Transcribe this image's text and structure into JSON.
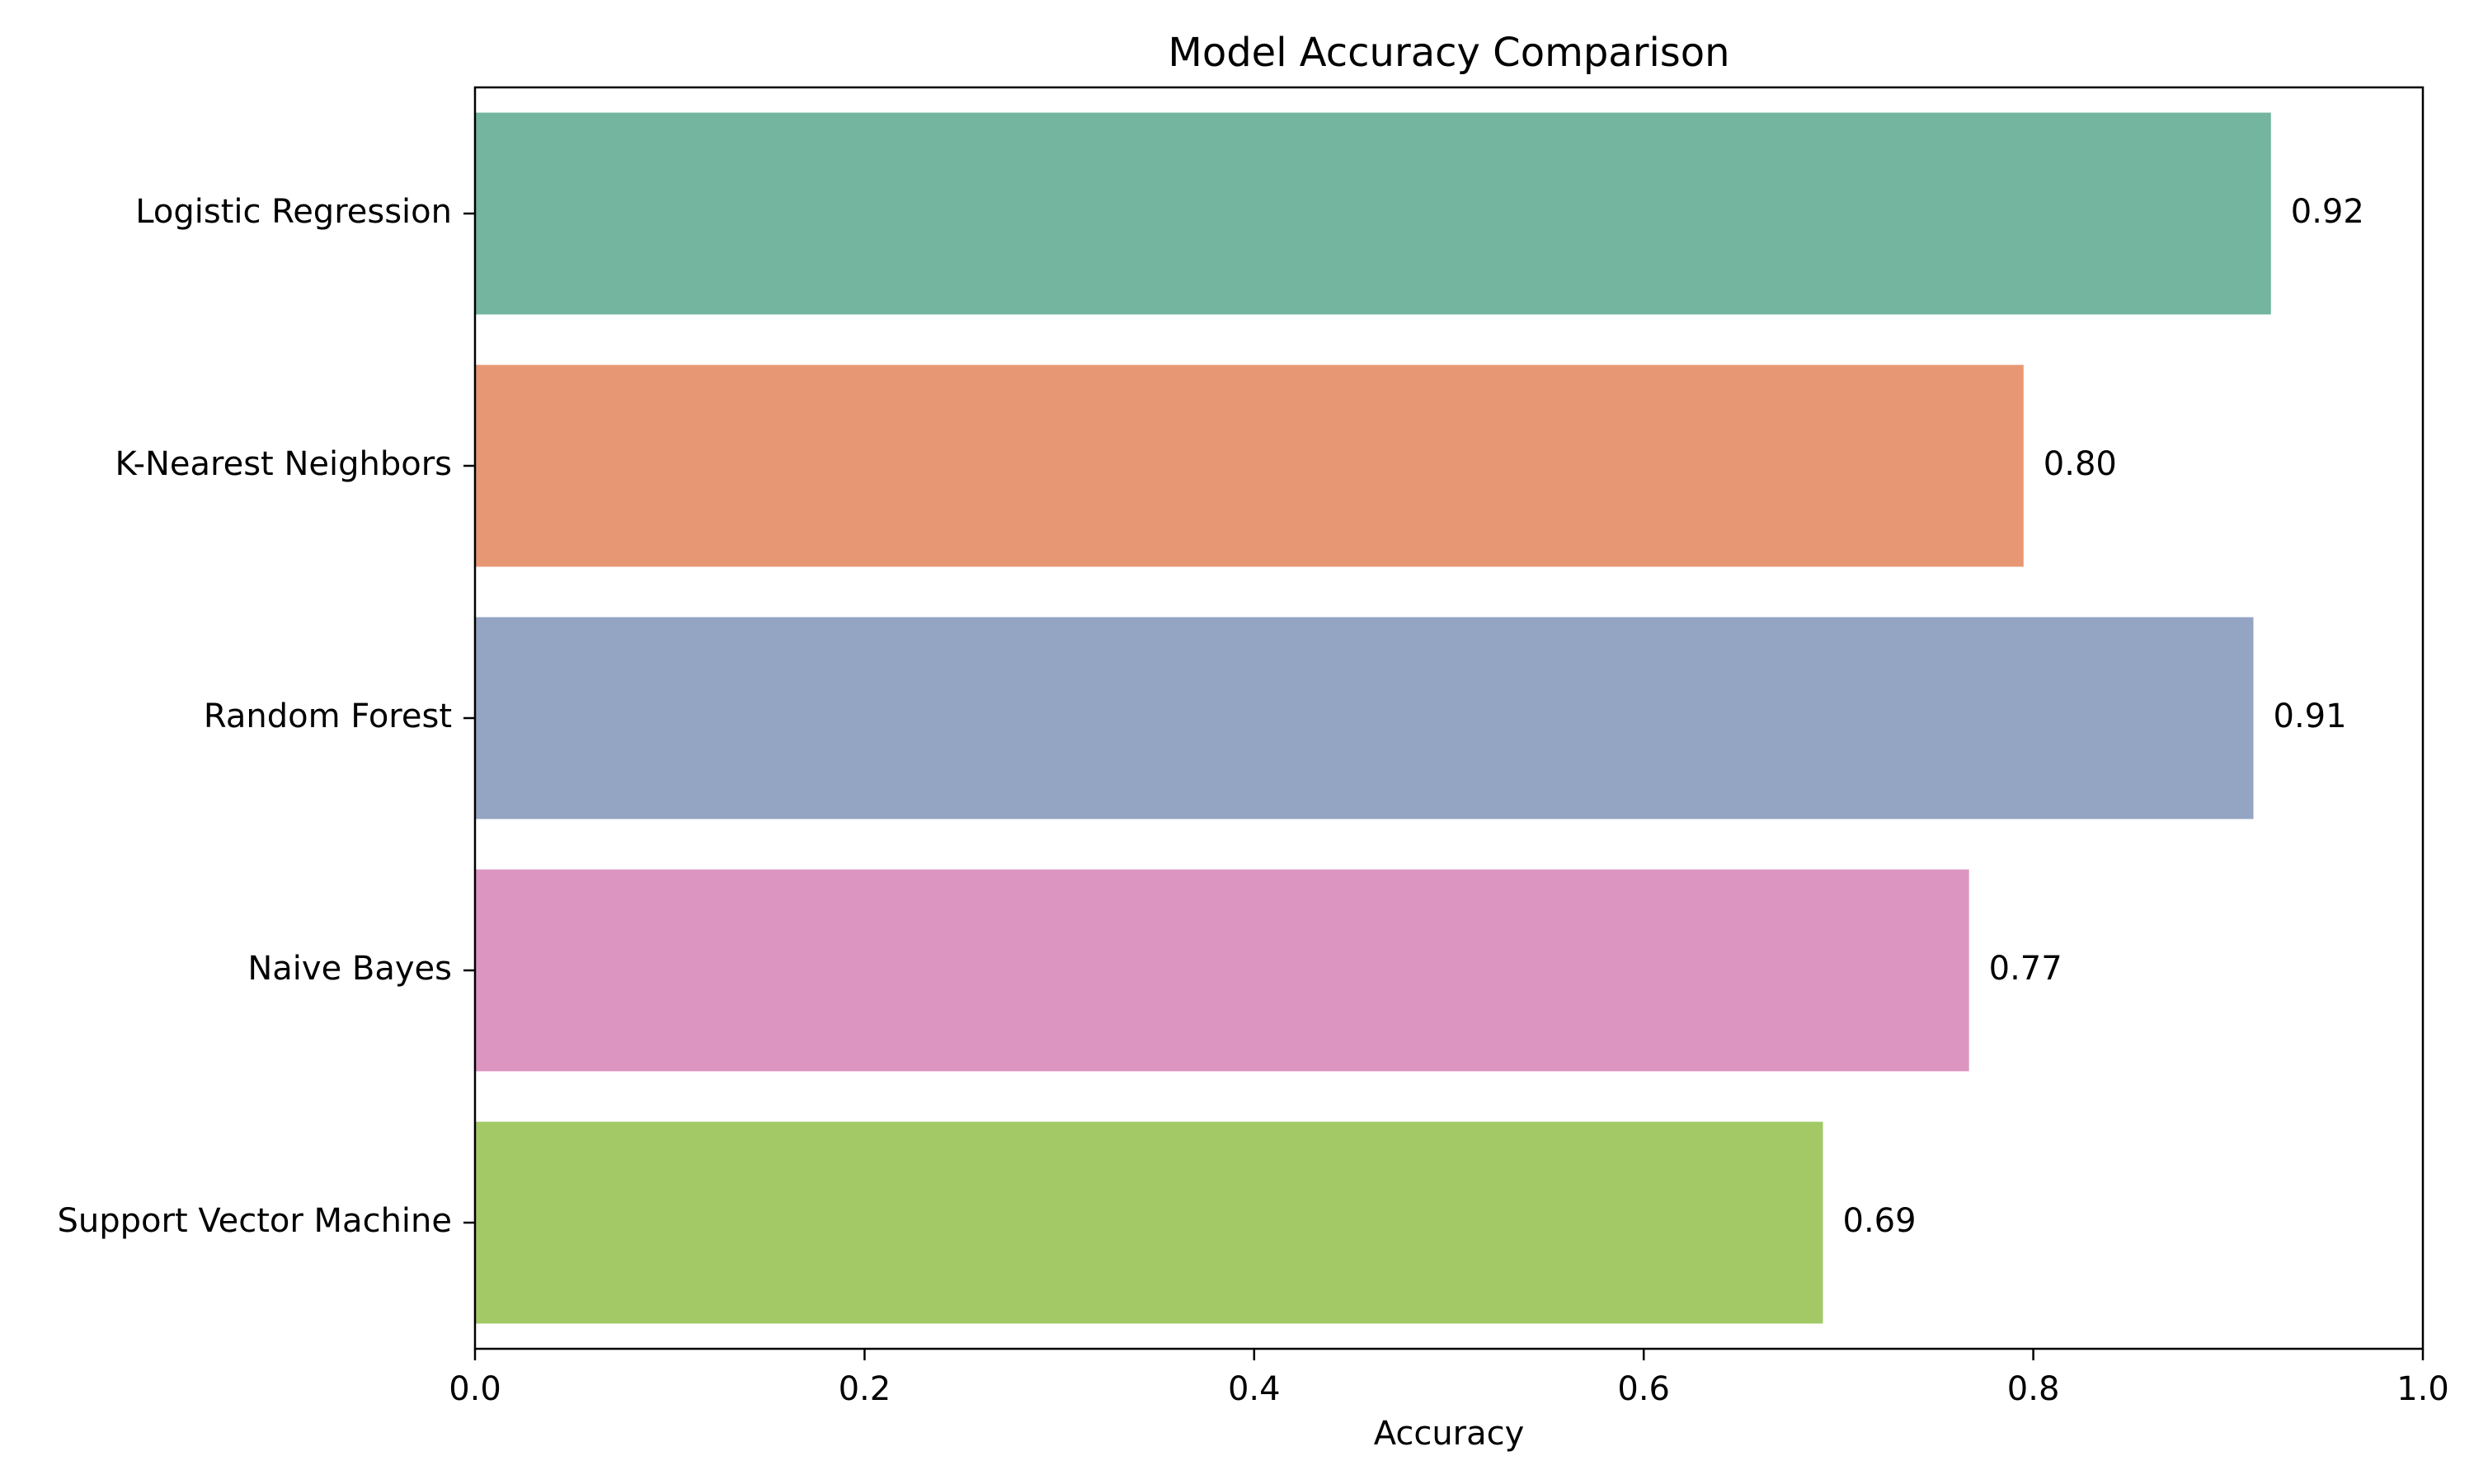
{
  "chart_data": {
    "type": "bar",
    "orientation": "horizontal",
    "title": "Model Accuracy Comparison",
    "xlabel": "Accuracy",
    "ylabel": "",
    "categories": [
      "Logistic Regression",
      "K-Nearest Neighbors",
      "Random Forest",
      "Naive Bayes",
      "Support Vector Machine"
    ],
    "values": [
      0.922,
      0.795,
      0.913,
      0.767,
      0.692
    ],
    "data_labels": [
      "0.92",
      "0.80",
      "0.91",
      "0.77",
      "0.69"
    ],
    "colors": [
      "#73b59f",
      "#e89774",
      "#94a4c3",
      "#dc95c0",
      "#a2c966"
    ],
    "xlim": [
      0.0,
      1.0
    ],
    "xticks": [
      0.0,
      0.2,
      0.4,
      0.6,
      0.8,
      1.0
    ],
    "xtick_labels": [
      "0.0",
      "0.2",
      "0.4",
      "0.6",
      "0.8",
      "1.0"
    ],
    "grid": false,
    "legend": "none"
  }
}
